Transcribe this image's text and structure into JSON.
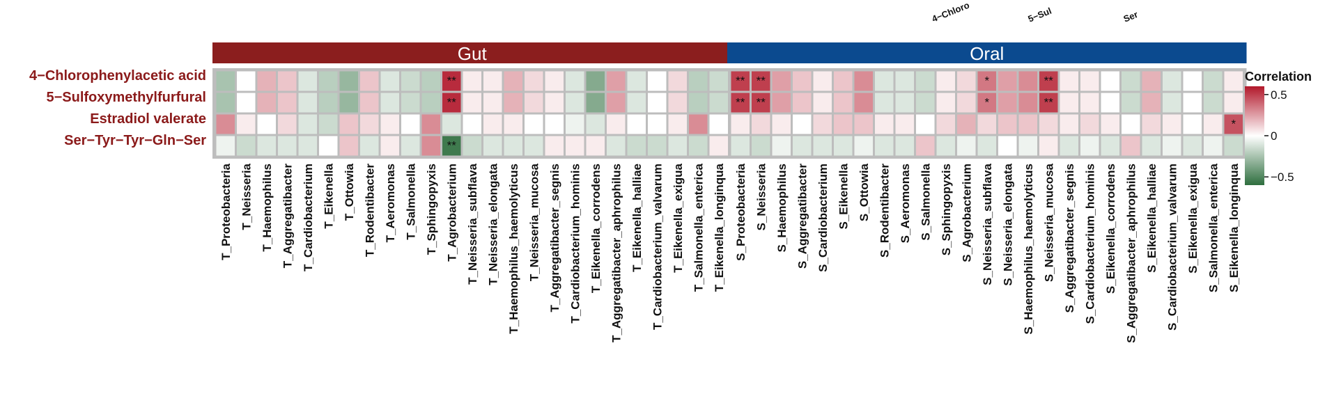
{
  "chart_data": {
    "type": "heatmap",
    "title": "",
    "top_labels": [
      "4−Chloro",
      "5−Sul",
      "Ser"
    ],
    "groups": [
      {
        "name": "Gut",
        "color": "#8B1E1E",
        "columns": [
          "T_Proteobacteria",
          "T_Neisseria",
          "T_Haemophilus",
          "T_Aggregatibacter",
          "T_Cardiobacterium",
          "T_Eikenella",
          "T_Ottowia",
          "T_Rodentibacter",
          "T_Aeromonas",
          "T_Salmonella",
          "T_Sphingopyxis",
          "T_Agrobacterium",
          "T_Neisseria_subflava",
          "T_Neisseria_elongata",
          "T_Haemophilus_haemolyticus",
          "T_Neisseria_mucosa",
          "T_Aggregatibacter_segnis",
          "T_Cardiobacterium_hominis",
          "T_Eikenella_corrodens",
          "T_Aggregatibacter_aphrophilus",
          "T_Eikenella_halliae",
          "T_Cardiobacterium_valvarum",
          "T_Eikenella_exigua",
          "T_Salmonella_enterica",
          "T_Eikenella_longinqua"
        ]
      },
      {
        "name": "Oral",
        "color": "#0B4A8F",
        "columns": [
          "S_Proteobacteria",
          "S_Neisseria",
          "S_Haemophilus",
          "S_Aggregatibacter",
          "S_Cardiobacterium",
          "S_Eikenella",
          "S_Ottowia",
          "S_Rodentibacter",
          "S_Aeromonas",
          "S_Salmonella",
          "S_Sphingopyxis",
          "S_Agrobacterium",
          "S_Neisseria_subflava",
          "S_Neisseria_elongata",
          "S_Haemophilus_haemolyticus",
          "S_Neisseria_mucosa",
          "S_Aggregatibacter_segnis",
          "S_Cardiobacterium_hominis",
          "S_Eikenella_corrodens",
          "S_Aggregatibacter_aphrophilus",
          "S_Eikenella_halliae",
          "S_Cardiobacterium_valvarum",
          "S_Eikenella_exigua",
          "S_Salmonella_enterica",
          "S_Eikenella_longinqua"
        ]
      }
    ],
    "rows": [
      "4−Chlorophenylacetic acid",
      "5−Sulfoxymethylfurfural",
      "Estradiol valerate",
      "Ser−Tyr−Tyr−Gln−Ser"
    ],
    "values": [
      [
        -0.25,
        0.0,
        0.2,
        0.15,
        -0.1,
        -0.2,
        -0.3,
        0.15,
        -0.1,
        -0.15,
        -0.2,
        0.55,
        0.05,
        0.05,
        0.2,
        0.1,
        0.05,
        -0.1,
        -0.35,
        0.25,
        -0.1,
        0.0,
        0.1,
        -0.2,
        -0.15,
        0.5,
        0.5,
        0.25,
        0.15,
        0.05,
        0.15,
        0.3,
        -0.1,
        -0.1,
        -0.15,
        0.05,
        0.1,
        0.35,
        0.25,
        0.3,
        0.5,
        0.05,
        0.05,
        0.0,
        -0.15,
        0.2,
        -0.1,
        0.0,
        -0.15,
        0.05
      ],
      [
        -0.25,
        0.0,
        0.2,
        0.15,
        -0.1,
        -0.2,
        -0.3,
        0.15,
        -0.1,
        -0.15,
        -0.2,
        0.55,
        0.05,
        0.05,
        0.2,
        0.1,
        0.05,
        -0.1,
        -0.35,
        0.25,
        -0.1,
        0.0,
        0.1,
        -0.2,
        -0.15,
        0.5,
        0.5,
        0.25,
        0.15,
        0.05,
        0.15,
        0.3,
        -0.1,
        -0.1,
        -0.15,
        0.05,
        0.1,
        0.35,
        0.25,
        0.3,
        0.5,
        0.05,
        0.05,
        0.0,
        -0.15,
        0.2,
        -0.1,
        0.0,
        -0.15,
        0.05
      ],
      [
        0.3,
        0.05,
        0.0,
        0.1,
        -0.1,
        -0.15,
        0.15,
        0.1,
        0.05,
        0.0,
        0.3,
        -0.1,
        0.0,
        0.05,
        0.05,
        0.0,
        0.0,
        -0.05,
        -0.1,
        0.05,
        0.0,
        0.0,
        0.05,
        0.3,
        0.0,
        0.05,
        0.1,
        0.05,
        0.0,
        0.1,
        0.15,
        0.15,
        0.05,
        0.05,
        0.0,
        0.1,
        0.2,
        0.1,
        0.15,
        0.15,
        0.1,
        0.05,
        0.1,
        0.05,
        0.0,
        0.1,
        0.05,
        0.0,
        0.05,
        0.45
      ],
      [
        -0.05,
        -0.15,
        -0.1,
        -0.1,
        -0.1,
        0.0,
        0.15,
        -0.1,
        0.05,
        -0.1,
        0.3,
        -0.55,
        -0.15,
        -0.1,
        -0.1,
        -0.1,
        0.05,
        0.05,
        0.05,
        -0.1,
        -0.15,
        -0.15,
        -0.1,
        -0.15,
        0.05,
        -0.1,
        -0.15,
        -0.05,
        -0.1,
        -0.1,
        -0.1,
        -0.05,
        -0.1,
        -0.1,
        0.15,
        -0.1,
        -0.05,
        -0.1,
        0.0,
        -0.05,
        0.05,
        -0.1,
        -0.05,
        -0.1,
        0.15,
        -0.1,
        -0.05,
        -0.1,
        -0.05,
        -0.15
      ]
    ],
    "significance": [
      [
        "",
        "",
        "",
        "",
        "",
        "",
        "",
        "",
        "",
        "",
        "",
        "**",
        "",
        "",
        "",
        "",
        "",
        "",
        "",
        "",
        "",
        "",
        "",
        "",
        "",
        "**",
        "**",
        "",
        "",
        "",
        "",
        "",
        "",
        "",
        "",
        "",
        "",
        "*",
        "",
        "",
        "**",
        "",
        "",
        "",
        "",
        "",
        "",
        "",
        "",
        ""
      ],
      [
        "",
        "",
        "",
        "",
        "",
        "",
        "",
        "",
        "",
        "",
        "",
        "**",
        "",
        "",
        "",
        "",
        "",
        "",
        "",
        "",
        "",
        "",
        "",
        "",
        "",
        "**",
        "**",
        "",
        "",
        "",
        "",
        "",
        "",
        "",
        "",
        "",
        "",
        "*",
        "",
        "",
        "**",
        "",
        "",
        "",
        "",
        "",
        "",
        "",
        "",
        ""
      ],
      [
        "",
        "",
        "",
        "",
        "",
        "",
        "",
        "",
        "",
        "",
        "",
        "",
        "",
        "",
        "",
        "",
        "",
        "",
        "",
        "",
        "",
        "",
        "",
        "",
        "",
        "",
        "",
        "",
        "",
        "",
        "",
        "",
        "",
        "",
        "",
        "",
        "",
        "",
        "",
        "",
        "",
        "",
        "",
        "",
        "",
        "",
        "",
        "",
        "",
        "*"
      ],
      [
        "",
        "",
        "",
        "",
        "",
        "",
        "",
        "",
        "",
        "",
        "",
        "**",
        "",
        "",
        "",
        "",
        "",
        "",
        "",
        "",
        "",
        "",
        "",
        "",
        "",
        "",
        "",
        "",
        "",
        "",
        "",
        "",
        "",
        "",
        "",
        "",
        "",
        "",
        "",
        "",
        "",
        "",
        "",
        "",
        "",
        "",
        "",
        "",
        "",
        ""
      ]
    ],
    "legend": {
      "title": "Correlation",
      "ticks": [
        {
          "value": 0.5,
          "label": "0.5"
        },
        {
          "value": 0,
          "label": "0"
        },
        {
          "value": -0.5,
          "label": "−0.5"
        }
      ],
      "range": [
        -0.6,
        0.6
      ]
    },
    "colors": {
      "high": "#B2182B",
      "mid": "#FFFFFF",
      "low": "#2E6E3E"
    }
  }
}
